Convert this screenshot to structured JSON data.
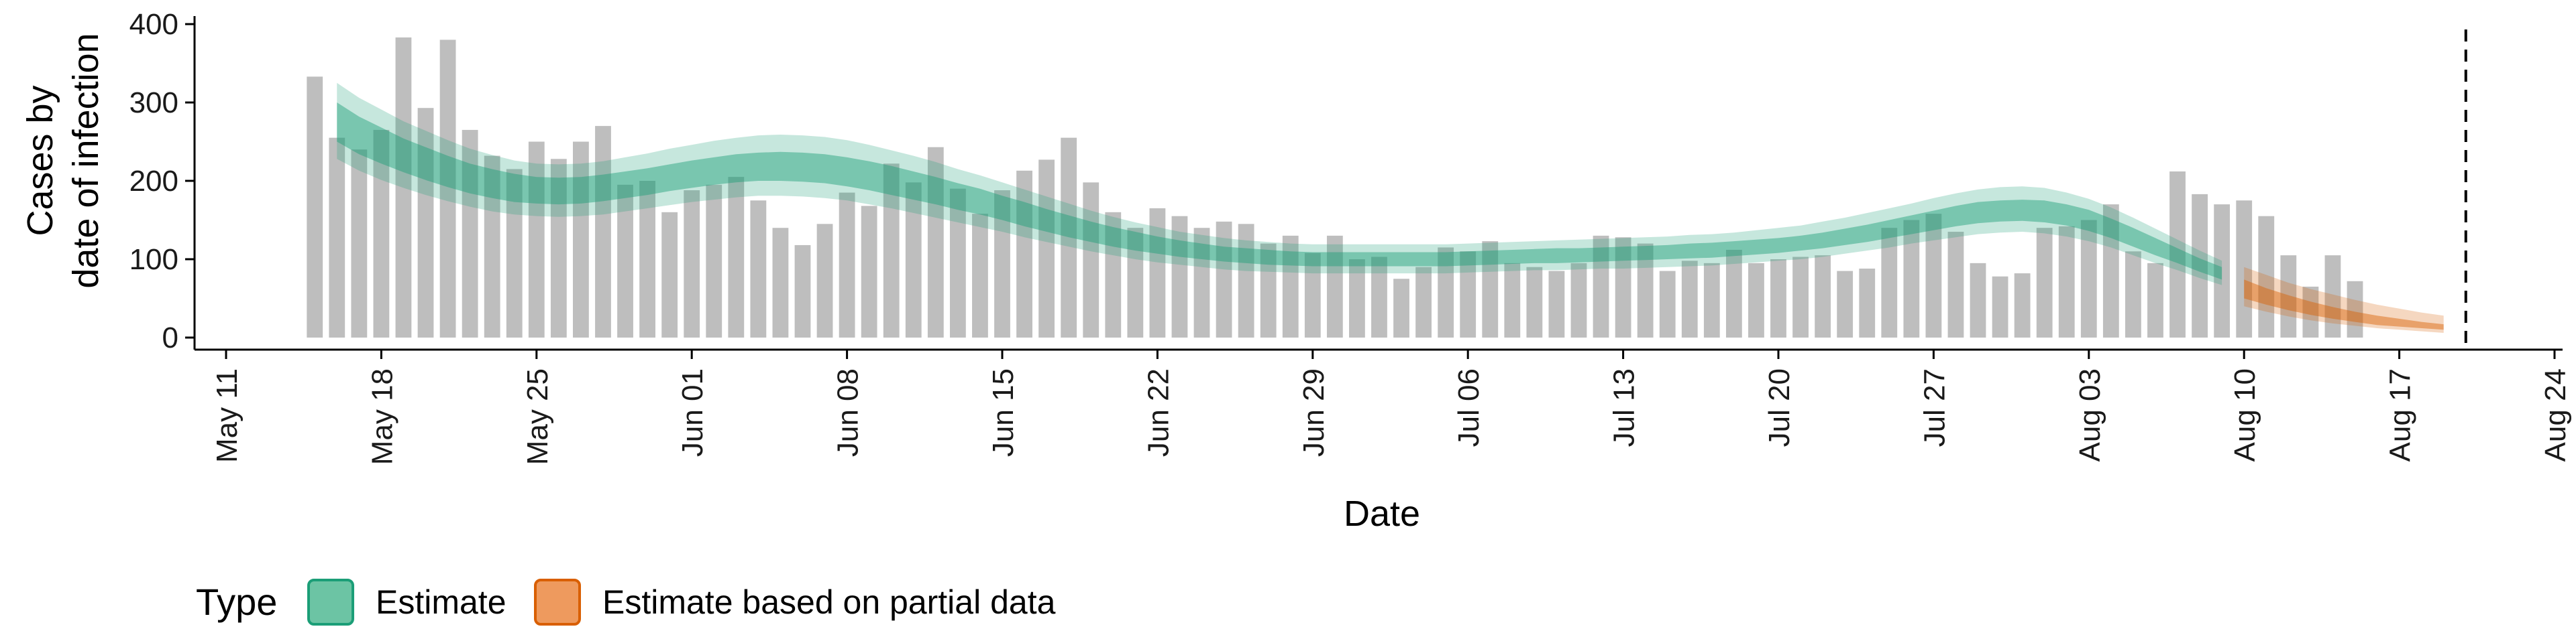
{
  "chart_data": {
    "type": "bar",
    "xlabel": "Date",
    "ylabel_line1": "Cases by",
    "ylabel_line2": "date of infection",
    "ylim": [
      0,
      400
    ],
    "yticks": [
      0,
      100,
      200,
      300,
      400
    ],
    "x_start_date": "2020-05-11",
    "x_end_date": "2020-08-24",
    "xticks": [
      "May 11",
      "May 18",
      "May 25",
      "Jun 01",
      "Jun 08",
      "Jun 15",
      "Jun 22",
      "Jun 29",
      "Jul 06",
      "Jul 13",
      "Jul 20",
      "Jul 27",
      "Aug 03",
      "Aug 10",
      "Aug 17",
      "Aug 24"
    ],
    "bars_start_date": "2020-05-15",
    "bar_values": [
      333,
      255,
      240,
      265,
      383,
      293,
      380,
      265,
      232,
      215,
      250,
      228,
      250,
      270,
      195,
      200,
      160,
      188,
      195,
      205,
      175,
      140,
      118,
      145,
      185,
      168,
      222,
      198,
      243,
      190,
      158,
      188,
      213,
      227,
      255,
      198,
      160,
      140,
      165,
      155,
      140,
      148,
      145,
      120,
      130,
      108,
      130,
      100,
      103,
      75,
      90,
      115,
      110,
      123,
      95,
      90,
      85,
      95,
      130,
      128,
      120,
      85,
      98,
      95,
      112,
      95,
      100,
      103,
      105,
      85,
      88,
      140,
      150,
      158,
      135,
      95,
      78,
      82,
      140,
      142,
      150,
      170,
      110,
      95,
      212,
      183,
      170,
      175,
      155,
      105,
      65,
      105,
      72
    ],
    "estimate_start_date": "2020-05-16",
    "estimate_median": [
      275,
      258,
      245,
      232,
      222,
      212,
      203,
      196,
      190,
      187,
      186,
      187,
      190,
      194,
      198,
      203,
      208,
      212,
      216,
      218,
      219,
      218,
      216,
      212,
      207,
      201,
      195,
      188,
      181,
      174,
      166,
      158,
      150,
      142,
      135,
      128,
      123,
      118,
      113,
      110,
      106,
      104,
      102,
      101,
      100,
      100,
      100,
      100,
      100,
      100,
      100,
      101,
      102,
      103,
      104,
      104,
      105,
      106,
      107,
      108,
      109,
      110,
      111,
      113,
      115,
      117,
      120,
      124,
      128,
      133,
      138,
      144,
      150,
      155,
      160,
      162,
      163,
      162,
      157,
      150,
      140,
      128,
      116,
      104,
      92,
      82
    ],
    "estimate_inner_lo": [
      250,
      234,
      222,
      211,
      201,
      192,
      184,
      178,
      173,
      171,
      170,
      171,
      174,
      178,
      182,
      187,
      191,
      195,
      198,
      200,
      200,
      199,
      197,
      193,
      188,
      182,
      176,
      170,
      163,
      157,
      150,
      142,
      135,
      128,
      122,
      116,
      111,
      107,
      103,
      100,
      97,
      95,
      93,
      92,
      91,
      91,
      91,
      91,
      91,
      91,
      91,
      92,
      93,
      94,
      95,
      95,
      96,
      97,
      98,
      99,
      100,
      101,
      102,
      104,
      106,
      108,
      111,
      114,
      118,
      122,
      127,
      132,
      137,
      142,
      146,
      148,
      149,
      147,
      143,
      136,
      127,
      116,
      105,
      95,
      84,
      74
    ],
    "estimate_inner_hi": [
      300,
      282,
      268,
      254,
      243,
      232,
      222,
      215,
      209,
      205,
      204,
      205,
      208,
      212,
      216,
      221,
      226,
      230,
      234,
      236,
      237,
      236,
      234,
      230,
      225,
      219,
      212,
      205,
      197,
      190,
      181,
      173,
      164,
      156,
      148,
      141,
      135,
      129,
      124,
      120,
      116,
      114,
      112,
      110,
      109,
      109,
      109,
      109,
      109,
      109,
      109,
      110,
      111,
      112,
      113,
      114,
      114,
      115,
      116,
      117,
      118,
      120,
      121,
      123,
      125,
      127,
      130,
      134,
      139,
      144,
      150,
      156,
      162,
      168,
      173,
      175,
      176,
      175,
      170,
      163,
      152,
      140,
      127,
      114,
      101,
      90
    ],
    "estimate_outer_lo": [
      228,
      213,
      201,
      191,
      182,
      174,
      167,
      161,
      157,
      155,
      154,
      155,
      157,
      161,
      165,
      169,
      173,
      176,
      179,
      181,
      181,
      180,
      178,
      175,
      170,
      165,
      159,
      153,
      147,
      141,
      135,
      128,
      122,
      116,
      110,
      105,
      100,
      96,
      93,
      90,
      87,
      85,
      84,
      83,
      82,
      82,
      82,
      82,
      82,
      82,
      82,
      83,
      84,
      85,
      86,
      86,
      87,
      88,
      88,
      89,
      90,
      91,
      92,
      94,
      96,
      98,
      100,
      103,
      107,
      111,
      115,
      120,
      124,
      128,
      132,
      134,
      135,
      133,
      129,
      123,
      115,
      105,
      95,
      86,
      76,
      67
    ],
    "estimate_outer_hi": [
      325,
      306,
      291,
      276,
      264,
      252,
      241,
      233,
      226,
      222,
      221,
      222,
      225,
      230,
      235,
      241,
      246,
      251,
      255,
      258,
      259,
      258,
      256,
      252,
      246,
      239,
      232,
      224,
      215,
      207,
      198,
      189,
      180,
      171,
      162,
      154,
      147,
      141,
      135,
      131,
      127,
      124,
      122,
      120,
      119,
      119,
      119,
      119,
      119,
      119,
      119,
      120,
      121,
      122,
      123,
      124,
      125,
      126,
      127,
      128,
      129,
      131,
      132,
      134,
      137,
      140,
      143,
      148,
      153,
      159,
      165,
      171,
      178,
      184,
      189,
      192,
      193,
      191,
      185,
      177,
      166,
      153,
      139,
      125,
      111,
      98
    ],
    "partial_start_date": "2020-08-10",
    "partial_median": [
      62,
      52,
      44,
      36,
      30,
      25,
      21,
      18,
      15,
      12
    ],
    "partial_inner_lo": [
      50,
      42,
      35,
      29,
      24,
      20,
      16,
      14,
      12,
      10
    ],
    "partial_inner_hi": [
      74,
      63,
      54,
      46,
      39,
      33,
      28,
      24,
      20,
      17
    ],
    "partial_outer_lo": [
      40,
      33,
      27,
      22,
      18,
      15,
      12,
      10,
      8,
      6
    ],
    "partial_outer_hi": [
      90,
      80,
      70,
      62,
      55,
      48,
      42,
      37,
      32,
      28
    ],
    "vline_date": "2020-08-20",
    "colors": {
      "bars": "#BEBEBE",
      "estimate_fill": "#1B9E77",
      "partial_fill": "#D95F02",
      "estimate_legend": "#6CC4A4",
      "partial_legend": "#EE9A5E"
    },
    "legend": {
      "title": "Type",
      "items": [
        "Estimate",
        "Estimate based on partial data"
      ]
    }
  }
}
